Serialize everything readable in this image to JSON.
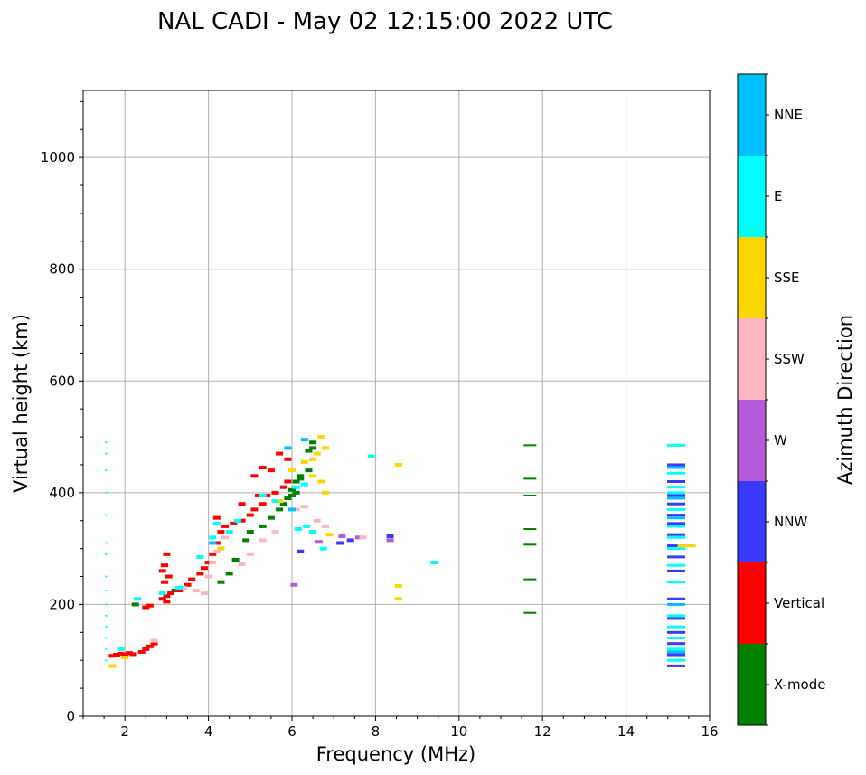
{
  "chart_data": {
    "type": "scatter",
    "title": "NAL CADI - May 02 12:15:00 2022 UTC",
    "xlabel": "Frequency (MHz)",
    "ylabel": "Virtual height (km)",
    "xlim": [
      1,
      16
    ],
    "ylim": [
      0,
      1120
    ],
    "xticks": [
      2,
      4,
      6,
      8,
      10,
      12,
      14,
      16
    ],
    "xtick_labels": [
      "2",
      "4",
      "6",
      "8",
      "10",
      "12",
      "14",
      "16"
    ],
    "yticks": [
      0,
      200,
      400,
      600,
      800,
      1000
    ],
    "ytick_labels": [
      "0",
      "200",
      "400",
      "600",
      "800",
      "1000"
    ],
    "grid": true,
    "colorbar": {
      "label": "Azimuth Direction",
      "categories": [
        {
          "name": "X-mode",
          "color": "#008000"
        },
        {
          "name": "Vertical",
          "color": "#ff0000"
        },
        {
          "name": "NNW",
          "color": "#3a3aff"
        },
        {
          "name": "W",
          "color": "#b65ad8"
        },
        {
          "name": "SSW",
          "color": "#ffb6c1"
        },
        {
          "name": "SSE",
          "color": "#ffd700"
        },
        {
          "name": "E",
          "color": "#00ffff"
        },
        {
          "name": "NNE",
          "color": "#00bfff"
        }
      ]
    },
    "series": [
      {
        "name": "X-mode",
        "points": [
          [
            2.25,
            200
          ],
          [
            3.2,
            225
          ],
          [
            4.3,
            240
          ],
          [
            4.5,
            255
          ],
          [
            4.65,
            280
          ],
          [
            4.9,
            315
          ],
          [
            5.0,
            330
          ],
          [
            5.3,
            340
          ],
          [
            5.5,
            355
          ],
          [
            5.7,
            370
          ],
          [
            5.8,
            380
          ],
          [
            5.9,
            390
          ],
          [
            6.0,
            395
          ],
          [
            6.1,
            400
          ],
          [
            6.1,
            420
          ],
          [
            6.2,
            430
          ],
          [
            6.4,
            440
          ],
          [
            6.4,
            475
          ],
          [
            6.5,
            480
          ],
          [
            6.5,
            490
          ],
          [
            6.0,
            405
          ],
          [
            6.2,
            425
          ],
          [
            11.7,
            485
          ],
          [
            11.7,
            425
          ],
          [
            11.7,
            395
          ],
          [
            11.7,
            335
          ],
          [
            11.7,
            307
          ],
          [
            11.7,
            245
          ],
          [
            11.7,
            185
          ]
        ]
      },
      {
        "name": "Vertical",
        "points": [
          [
            1.7,
            108
          ],
          [
            1.8,
            110
          ],
          [
            1.9,
            112
          ],
          [
            2.0,
            110
          ],
          [
            2.1,
            113
          ],
          [
            2.2,
            111
          ],
          [
            2.4,
            115
          ],
          [
            2.5,
            120
          ],
          [
            2.6,
            125
          ],
          [
            2.7,
            130
          ],
          [
            2.5,
            195
          ],
          [
            2.6,
            198
          ],
          [
            2.9,
            210
          ],
          [
            3.0,
            205
          ],
          [
            3.0,
            215
          ],
          [
            3.1,
            220
          ],
          [
            3.3,
            225
          ],
          [
            3.5,
            235
          ],
          [
            3.6,
            245
          ],
          [
            3.8,
            255
          ],
          [
            3.9,
            265
          ],
          [
            4.0,
            275
          ],
          [
            4.1,
            290
          ],
          [
            4.2,
            310
          ],
          [
            4.3,
            330
          ],
          [
            4.4,
            340
          ],
          [
            4.6,
            345
          ],
          [
            4.8,
            350
          ],
          [
            5.0,
            360
          ],
          [
            5.1,
            370
          ],
          [
            5.3,
            380
          ],
          [
            5.4,
            395
          ],
          [
            5.6,
            400
          ],
          [
            5.8,
            410
          ],
          [
            5.9,
            420
          ],
          [
            5.2,
            395
          ],
          [
            5.5,
            440
          ],
          [
            5.7,
            470
          ],
          [
            5.9,
            460
          ],
          [
            2.9,
            260
          ],
          [
            2.95,
            240
          ],
          [
            3.0,
            290
          ],
          [
            2.95,
            270
          ],
          [
            3.05,
            250
          ],
          [
            4.2,
            355
          ],
          [
            4.8,
            380
          ],
          [
            5.1,
            430
          ],
          [
            5.3,
            445
          ]
        ]
      },
      {
        "name": "NNW",
        "points": [
          [
            7.15,
            310
          ],
          [
            7.4,
            315
          ],
          [
            8.35,
            322
          ],
          [
            6.2,
            295
          ],
          [
            15.2,
            90
          ],
          [
            15.2,
            110
          ],
          [
            15.2,
            130
          ],
          [
            15.2,
            150
          ],
          [
            15.2,
            175
          ],
          [
            15.2,
            210
          ],
          [
            15.2,
            260
          ],
          [
            15.2,
            285
          ],
          [
            15.2,
            305
          ],
          [
            15.2,
            325
          ],
          [
            15.2,
            345
          ],
          [
            15.2,
            360
          ],
          [
            15.2,
            380
          ],
          [
            15.2,
            395
          ],
          [
            15.2,
            420
          ],
          [
            15.2,
            450
          ]
        ]
      },
      {
        "name": "W",
        "points": [
          [
            6.65,
            312
          ],
          [
            7.2,
            322
          ],
          [
            7.6,
            320
          ],
          [
            8.35,
            315
          ],
          [
            6.05,
            235
          ]
        ]
      },
      {
        "name": "SSW",
        "points": [
          [
            3.4,
            230
          ],
          [
            3.7,
            225
          ],
          [
            3.9,
            220
          ],
          [
            4.0,
            250
          ],
          [
            4.1,
            275
          ],
          [
            4.2,
            295
          ],
          [
            4.4,
            320
          ],
          [
            4.8,
            272
          ],
          [
            5.0,
            290
          ],
          [
            5.3,
            315
          ],
          [
            5.6,
            330
          ],
          [
            6.1,
            370
          ],
          [
            6.3,
            375
          ],
          [
            6.6,
            350
          ],
          [
            6.8,
            340
          ],
          [
            7.7,
            320
          ],
          [
            2.7,
            135
          ]
        ]
      },
      {
        "name": "SSE",
        "points": [
          [
            1.7,
            90
          ],
          [
            2.0,
            105
          ],
          [
            4.3,
            300
          ],
          [
            5.7,
            385
          ],
          [
            6.0,
            440
          ],
          [
            6.3,
            455
          ],
          [
            6.5,
            460
          ],
          [
            6.6,
            470
          ],
          [
            6.7,
            500
          ],
          [
            6.8,
            480
          ],
          [
            6.8,
            400
          ],
          [
            6.7,
            420
          ],
          [
            6.5,
            430
          ],
          [
            6.9,
            325
          ],
          [
            8.55,
            450
          ],
          [
            8.55,
            233
          ],
          [
            8.55,
            210
          ],
          [
            15.45,
            305
          ]
        ]
      },
      {
        "name": "E",
        "points": [
          [
            1.55,
            490
          ],
          [
            1.55,
            470
          ],
          [
            1.55,
            440
          ],
          [
            1.55,
            400
          ],
          [
            1.55,
            360
          ],
          [
            1.55,
            310
          ],
          [
            1.55,
            290
          ],
          [
            1.55,
            250
          ],
          [
            1.55,
            225
          ],
          [
            1.55,
            200
          ],
          [
            1.55,
            180
          ],
          [
            1.55,
            160
          ],
          [
            1.55,
            140
          ],
          [
            1.55,
            120
          ],
          [
            1.55,
            100
          ],
          [
            1.9,
            120
          ],
          [
            2.3,
            210
          ],
          [
            2.9,
            220
          ],
          [
            3.3,
            230
          ],
          [
            3.8,
            285
          ],
          [
            4.1,
            320
          ],
          [
            4.2,
            345
          ],
          [
            4.5,
            330
          ],
          [
            4.7,
            350
          ],
          [
            5.3,
            395
          ],
          [
            5.6,
            385
          ],
          [
            6.1,
            410
          ],
          [
            6.3,
            415
          ],
          [
            6.15,
            335
          ],
          [
            6.35,
            340
          ],
          [
            6.5,
            330
          ],
          [
            6.75,
            300
          ],
          [
            7.9,
            465
          ],
          [
            9.4,
            275
          ],
          [
            15.2,
            100
          ],
          [
            15.2,
            120
          ],
          [
            15.2,
            140
          ],
          [
            15.2,
            160
          ],
          [
            15.2,
            180
          ],
          [
            15.2,
            240
          ],
          [
            15.2,
            270
          ],
          [
            15.2,
            300
          ],
          [
            15.2,
            320
          ],
          [
            15.2,
            340
          ],
          [
            15.2,
            370
          ],
          [
            15.2,
            400
          ],
          [
            15.2,
            410
          ],
          [
            15.2,
            435
          ],
          [
            15.2,
            485
          ]
        ]
      },
      {
        "name": "NNE",
        "points": [
          [
            4.1,
            310
          ],
          [
            5.9,
            480
          ],
          [
            6.3,
            495
          ],
          [
            6.0,
            370
          ],
          [
            15.2,
            115
          ],
          [
            15.2,
            200
          ],
          [
            15.2,
            355
          ],
          [
            15.2,
            390
          ],
          [
            15.2,
            445
          ]
        ]
      }
    ]
  }
}
